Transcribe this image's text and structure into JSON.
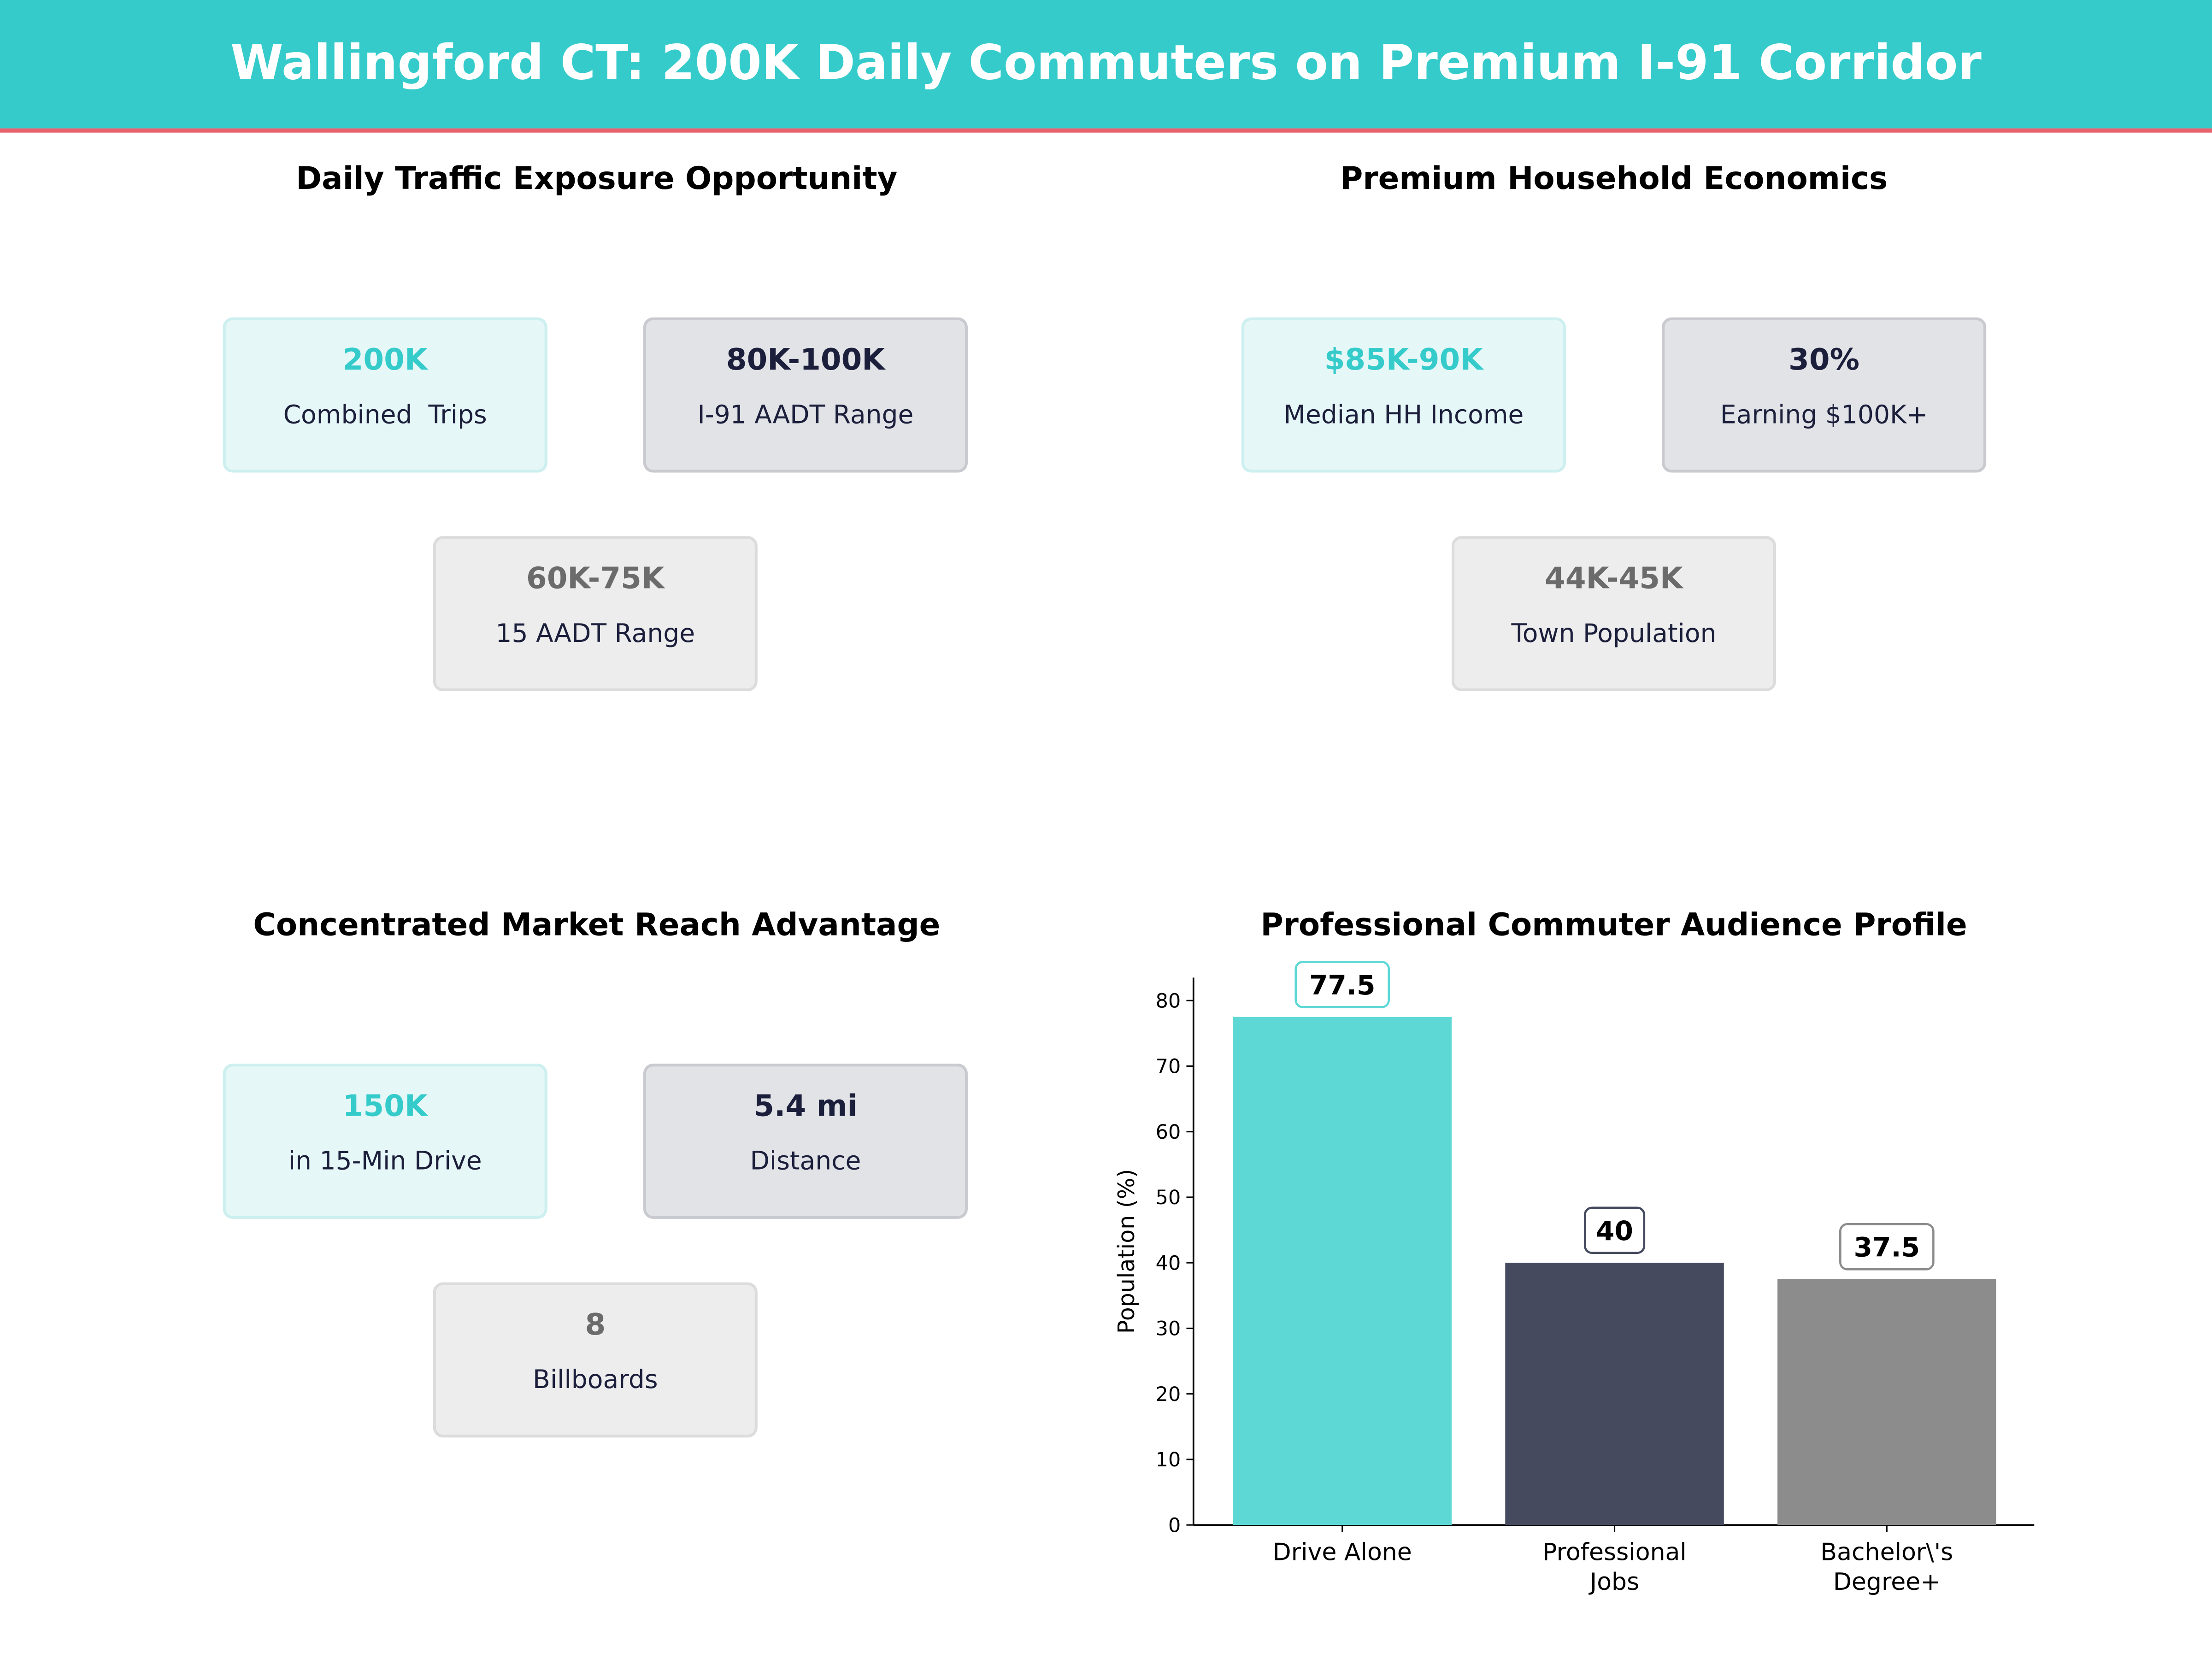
{
  "header": {
    "title": "Wallingford CT: 200K Daily Commuters on Premium I-91 Corridor",
    "bg_color": "#36CBCB",
    "accent_line_color": "#E8636E"
  },
  "panels": [
    {
      "title": "Daily Traffic Exposure Opportunity",
      "cards": [
        {
          "value": "200K",
          "label": "Combined  Trips",
          "style": "teal"
        },
        {
          "value": "80K-100K",
          "label": "I-91 AADT Range",
          "style": "dark"
        },
        {
          "value": "60K-75K",
          "label": "15 AADT Range",
          "style": "gray"
        }
      ]
    },
    {
      "title": "Premium Household Economics",
      "cards": [
        {
          "value": "$85K-90K",
          "label": "Median HH Income",
          "style": "teal"
        },
        {
          "value": "30%",
          "label": "Earning $100K+",
          "style": "dark"
        },
        {
          "value": "44K-45K",
          "label": "Town Population",
          "style": "gray"
        }
      ]
    },
    {
      "title": "Concentrated Market Reach Advantage",
      "cards": [
        {
          "value": "150K",
          "label": "in 15-Min Drive",
          "style": "teal"
        },
        {
          "value": "5.4 mi",
          "label": "Distance",
          "style": "dark"
        },
        {
          "value": "8",
          "label": "Billboards",
          "style": "gray"
        }
      ]
    }
  ],
  "chart_data": {
    "type": "bar",
    "title": "Professional Commuter Audience Profile",
    "categories": [
      "Drive Alone",
      "Professional\nJobs",
      "Bachelor\\'s\nDegree+"
    ],
    "values": [
      77.5,
      40,
      37.5
    ],
    "value_labels": [
      "77.5",
      "40",
      "37.5"
    ],
    "colors": [
      "#5DD8D5",
      "#464A5F",
      "#8C8C8C"
    ],
    "xlabel": "",
    "ylabel": "Population (%)",
    "ylim": [
      0,
      83.5
    ],
    "yticks": [
      0,
      10,
      20,
      30,
      40,
      50,
      60,
      70,
      80
    ],
    "grid": false
  }
}
